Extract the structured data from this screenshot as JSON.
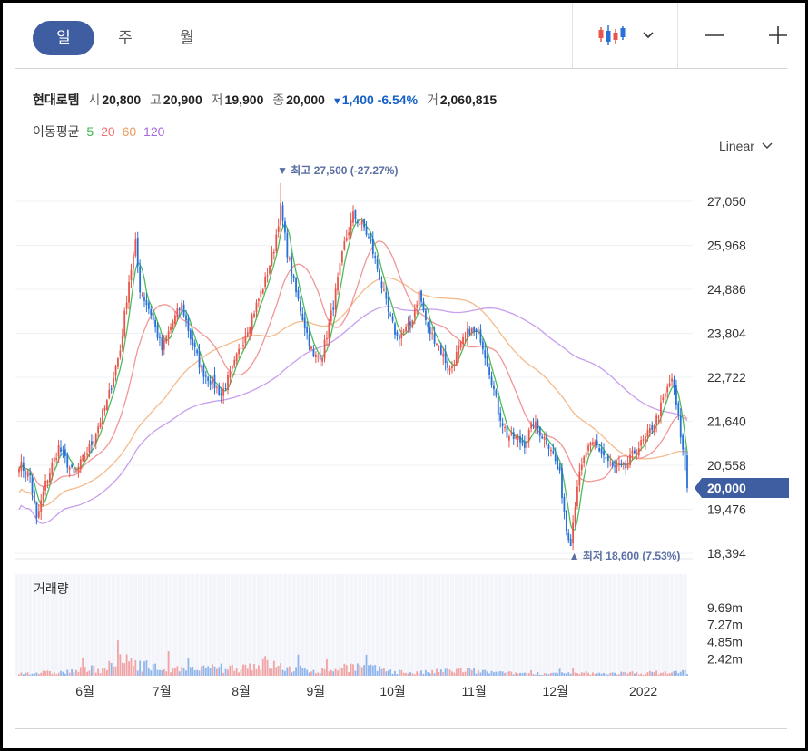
{
  "tabs": [
    {
      "label": "일",
      "active": true
    },
    {
      "label": "주",
      "active": false
    },
    {
      "label": "월",
      "active": false
    }
  ],
  "quote": {
    "name": "현대로템",
    "open_label": "시",
    "open": "20,800",
    "high_label": "고",
    "high": "20,900",
    "low_label": "저",
    "low": "19,900",
    "close_label": "종",
    "close": "20,000",
    "change": "1,400",
    "change_pct": "-6.54%",
    "volume_label": "거",
    "volume": "2,060,815"
  },
  "ma_legend": {
    "label": "이동평균",
    "p5": "5",
    "p20": "20",
    "p60": "60",
    "p120": "120"
  },
  "scale_label": "Linear",
  "colors": {
    "accent": "#3f5da1",
    "up": "#e8564b",
    "down": "#2770d8",
    "ma5": "#3bb44a",
    "ma20": "#f08a8a",
    "ma60": "#f3b27e",
    "ma120": "#c193ea"
  },
  "chart_data": {
    "type": "candlestick",
    "price_axis": {
      "ticks": [
        "27,050",
        "25,968",
        "24,886",
        "23,804",
        "22,722",
        "21,640",
        "20,558",
        "19,476",
        "18,394"
      ]
    },
    "current_price": "20,000",
    "high_marker": "▼ 최고 27,500 (-27.27%)",
    "low_marker": "▲ 최저 18,600 (7.53%)",
    "x_ticks": [
      "6월",
      "7월",
      "8월",
      "9월",
      "10월",
      "11월",
      "12월",
      "2022"
    ],
    "volume_panel": {
      "label": "거래량",
      "ticks": [
        "9.69m",
        "7.27m",
        "4.85m",
        "2.42m"
      ]
    },
    "anchors": [
      [
        0,
        20600
      ],
      [
        5,
        20300
      ],
      [
        8,
        19200
      ],
      [
        12,
        20100
      ],
      [
        18,
        21000
      ],
      [
        25,
        20300
      ],
      [
        33,
        21100
      ],
      [
        40,
        22100
      ],
      [
        46,
        23400
      ],
      [
        50,
        25100
      ],
      [
        53,
        26000
      ],
      [
        55,
        24900
      ],
      [
        60,
        24300
      ],
      [
        65,
        23400
      ],
      [
        70,
        24100
      ],
      [
        74,
        24500
      ],
      [
        78,
        23700
      ],
      [
        83,
        22900
      ],
      [
        88,
        22600
      ],
      [
        92,
        22300
      ],
      [
        97,
        22900
      ],
      [
        103,
        23800
      ],
      [
        108,
        24500
      ],
      [
        112,
        25100
      ],
      [
        116,
        25900
      ],
      [
        119,
        26900
      ],
      [
        122,
        25800
      ],
      [
        126,
        24800
      ],
      [
        130,
        24000
      ],
      [
        134,
        23200
      ],
      [
        138,
        23300
      ],
      [
        143,
        24500
      ],
      [
        148,
        26000
      ],
      [
        152,
        26700
      ],
      [
        157,
        26400
      ],
      [
        160,
        26000
      ],
      [
        164,
        25200
      ],
      [
        168,
        24300
      ],
      [
        172,
        23700
      ],
      [
        178,
        24000
      ],
      [
        182,
        24800
      ],
      [
        186,
        23900
      ],
      [
        190,
        23600
      ],
      [
        196,
        22900
      ],
      [
        200,
        23400
      ],
      [
        205,
        23900
      ],
      [
        210,
        23700
      ],
      [
        214,
        22900
      ],
      [
        218,
        21900
      ],
      [
        222,
        21300
      ],
      [
        226,
        21200
      ],
      [
        230,
        21100
      ],
      [
        234,
        21600
      ],
      [
        238,
        21300
      ],
      [
        242,
        21000
      ],
      [
        246,
        20300
      ],
      [
        249,
        19000
      ],
      [
        251,
        18700
      ],
      [
        254,
        20100
      ],
      [
        258,
        20900
      ],
      [
        262,
        21100
      ],
      [
        266,
        20800
      ],
      [
        270,
        20500
      ],
      [
        276,
        20500
      ],
      [
        280,
        20900
      ],
      [
        285,
        21200
      ],
      [
        290,
        21700
      ],
      [
        294,
        22300
      ],
      [
        297,
        22700
      ],
      [
        300,
        21700
      ],
      [
        302,
        20900
      ],
      [
        304,
        20000
      ]
    ],
    "volume_anchors": [
      [
        0,
        0.4
      ],
      [
        20,
        0.5
      ],
      [
        40,
        1.2
      ],
      [
        50,
        2.3
      ],
      [
        60,
        1.2
      ],
      [
        75,
        0.8
      ],
      [
        100,
        1.2
      ],
      [
        112,
        1.8
      ],
      [
        122,
        1.0
      ],
      [
        140,
        0.7
      ],
      [
        150,
        1.4
      ],
      [
        165,
        0.8
      ],
      [
        180,
        0.4
      ],
      [
        200,
        0.8
      ],
      [
        220,
        0.4
      ],
      [
        260,
        0.3
      ],
      [
        300,
        0.5
      ],
      [
        304,
        0.6
      ]
    ]
  }
}
